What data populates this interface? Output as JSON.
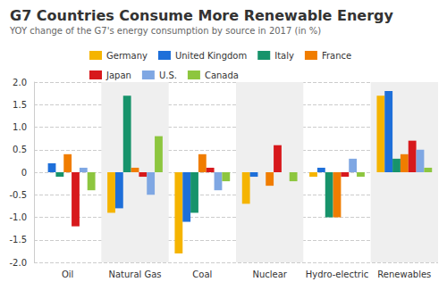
{
  "chart_data": {
    "type": "bar",
    "title": "G7 Countries Consume More Renewable Energy",
    "subtitle": "YOY change of the G7's energy consumption by source in 2017 (in %)",
    "categories": [
      "Oil",
      "Natural Gas",
      "Coal",
      "Nuclear",
      "Hydro-electric",
      "Renewables"
    ],
    "series": [
      {
        "name": "Germany",
        "color": "#f5b400",
        "values": [
          0,
          -0.9,
          -1.8,
          -0.7,
          -0.1,
          1.7
        ]
      },
      {
        "name": "United Kingdom",
        "color": "#1e6fd9",
        "values": [
          0.2,
          -0.8,
          -1.1,
          -0.1,
          0.1,
          1.8
        ]
      },
      {
        "name": "Italy",
        "color": "#17936b",
        "values": [
          -0.1,
          1.7,
          -0.9,
          null,
          -1.0,
          0.3
        ]
      },
      {
        "name": "France",
        "color": "#f07d00",
        "values": [
          0.4,
          0.1,
          0.4,
          -0.3,
          -1.0,
          0.4
        ]
      },
      {
        "name": "Japan",
        "color": "#d7191c",
        "values": [
          -1.2,
          -0.1,
          0.1,
          0.6,
          -0.1,
          0.7
        ]
      },
      {
        "name": "U.S.",
        "color": "#7fa7e3",
        "values": [
          0.1,
          -0.5,
          -0.4,
          0,
          0.3,
          0.5
        ]
      },
      {
        "name": "Canada",
        "color": "#8dc63f",
        "values": [
          -0.4,
          0.8,
          -0.2,
          -0.2,
          -0.1,
          0.1
        ]
      }
    ],
    "ylim": [
      -2,
      2
    ],
    "yticks": [
      {
        "value": -2,
        "label": "-2.0"
      },
      -1.5,
      {
        "value": -1,
        "label": "-1.0"
      },
      -0.5,
      0,
      0.5,
      {
        "value": 1,
        "label": "1.0"
      },
      1.5,
      {
        "value": 2,
        "label": "2.0"
      }
    ],
    "grid": true,
    "legend": "top"
  }
}
